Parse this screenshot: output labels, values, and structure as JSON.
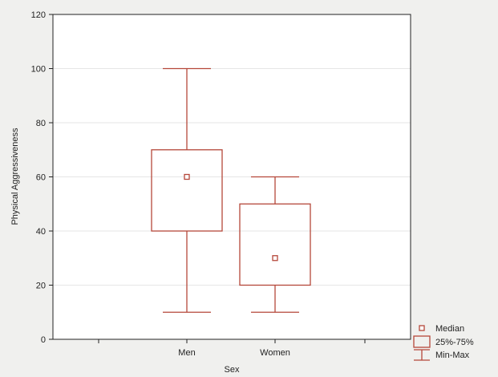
{
  "chart_data": {
    "type": "box",
    "title": "",
    "xlabel": "Sex",
    "ylabel": "Physical Aggressiveness",
    "ylim": [
      0,
      120
    ],
    "yticks": [
      0,
      20,
      40,
      60,
      80,
      100,
      120
    ],
    "grid": true,
    "legend_position": "bottom-right",
    "categories": [
      "Men",
      "Women"
    ],
    "boxes": [
      {
        "category": "Men",
        "min": 10,
        "q1": 40,
        "median": 60,
        "q3": 70,
        "max": 100
      },
      {
        "category": "Women",
        "min": 10,
        "q1": 20,
        "median": 30,
        "q3": 50,
        "max": 60
      }
    ],
    "legend": [
      {
        "symbol": "median",
        "label": "Median"
      },
      {
        "symbol": "box",
        "label": "25%-75%"
      },
      {
        "symbol": "whisker",
        "label": "Min-Max"
      }
    ],
    "colors": {
      "box": "#b5473a",
      "axis": "#222222",
      "plot_bg": "#ffffff",
      "page_bg": "#f0f0ee",
      "grid": "#e6e6e6"
    }
  }
}
